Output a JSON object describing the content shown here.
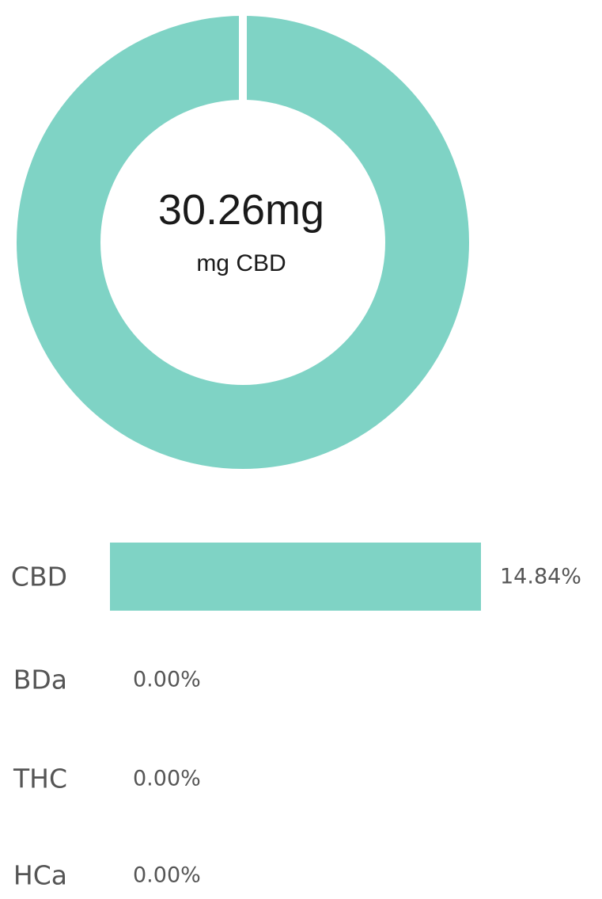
{
  "colors": {
    "accent": "#7fd3c5",
    "text": "#555555",
    "center_text": "#1a1a1a"
  },
  "donut": {
    "center_value": "30.26mg",
    "center_unit": "mg CBD"
  },
  "chart_data": [
    {
      "type": "pie",
      "variant": "donut",
      "center_value": "30.26mg",
      "center_unit": "mg CBD",
      "slices": [
        {
          "label": "CBD",
          "value": 30.26
        }
      ]
    },
    {
      "type": "bar",
      "orientation": "horizontal",
      "categories": [
        "CBD",
        "BDa",
        "THC",
        "HCa"
      ],
      "values": [
        14.84,
        0.0,
        0.0,
        0.0
      ],
      "value_labels": [
        "14.84%",
        "0.00%",
        "0.00%",
        "0.00%"
      ]
    }
  ]
}
